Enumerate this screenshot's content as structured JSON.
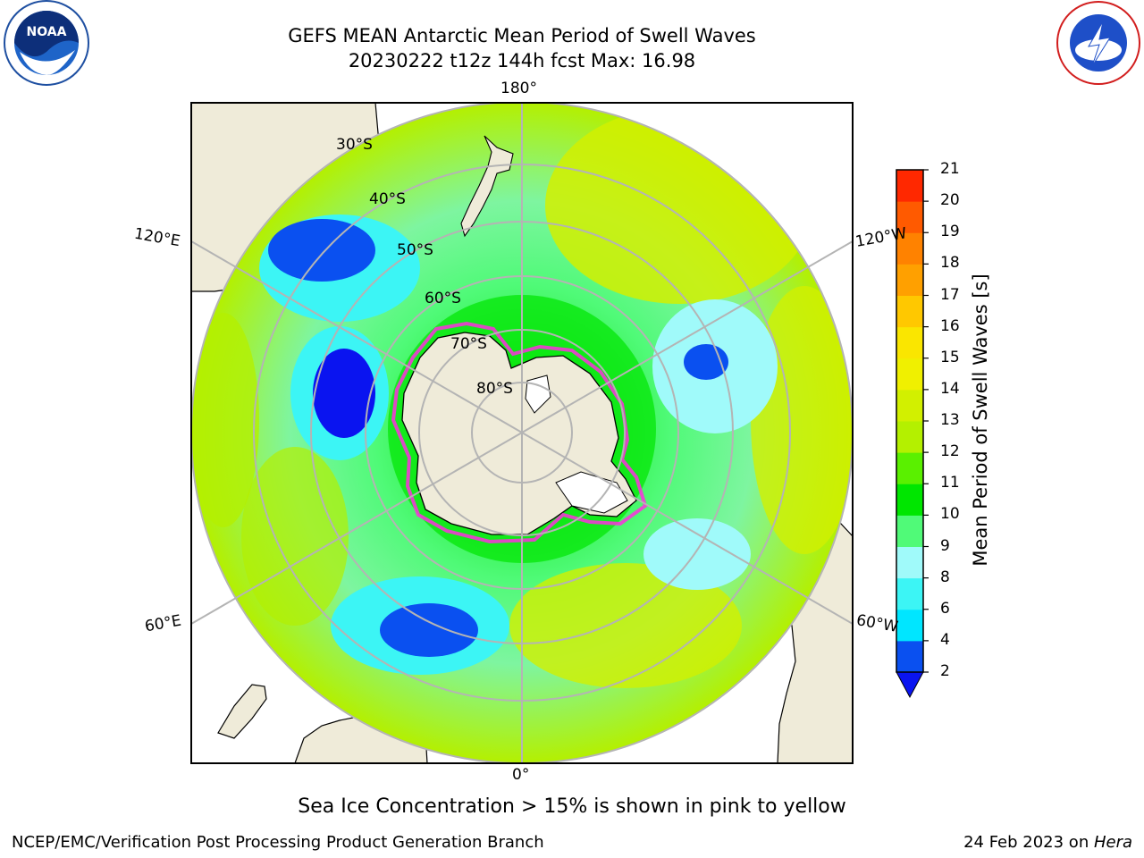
{
  "title": {
    "line1": "GEFS MEAN Antarctic Mean Period of Swell Waves",
    "line2": "20230222 t12z 144h fcst   Max: 16.98"
  },
  "logos": {
    "left": {
      "text": "NOAA",
      "ring_text": "NATIONAL OCEANIC AND ATMOSPHERIC ADMINISTRATION · U.S. DEPARTMENT OF COMMERCE"
    },
    "right": {
      "ring_text": "NATIONAL WEATHER SERVICE"
    }
  },
  "map": {
    "projection": "south polar stereographic",
    "longitude_labels": {
      "top": "180°",
      "bottom": "0°",
      "upper_left": "120°E",
      "lower_left": "60°E",
      "upper_right": "120°W",
      "lower_right": "60°W"
    },
    "latitude_labels": [
      "30°S",
      "40°S",
      "50°S",
      "60°S",
      "70°S",
      "80°S"
    ],
    "colors": {
      "land": "#efebd9",
      "grid": "#b4b4b4",
      "sea_ice": "#ff2ee0"
    }
  },
  "colorbar": {
    "label": "Mean Period of Swell Waves [s]",
    "ticks": [
      "2",
      "4",
      "6",
      "8",
      "9",
      "10",
      "11",
      "12",
      "13",
      "14",
      "15",
      "16",
      "17",
      "18",
      "19",
      "20",
      "21"
    ],
    "colors": [
      "#0a50f0",
      "#00e6ff",
      "#3cf5f5",
      "#a0fafa",
      "#50fa78",
      "#00e600",
      "#5af000",
      "#b4f000",
      "#d2f000",
      "#f0f000",
      "#fae600",
      "#ffc800",
      "#ffa000",
      "#ff8200",
      "#ff5a00",
      "#ff2800"
    ],
    "extend_color": "#0a14f0"
  },
  "annotation": "Sea Ice Concentration > 15% is shown in pink to yellow",
  "footer": {
    "left": "NCEP/EMC/Verification Post Processing Product Generation Branch",
    "right_prefix": "24 Feb 2023 on ",
    "right_italic": "Hera"
  }
}
